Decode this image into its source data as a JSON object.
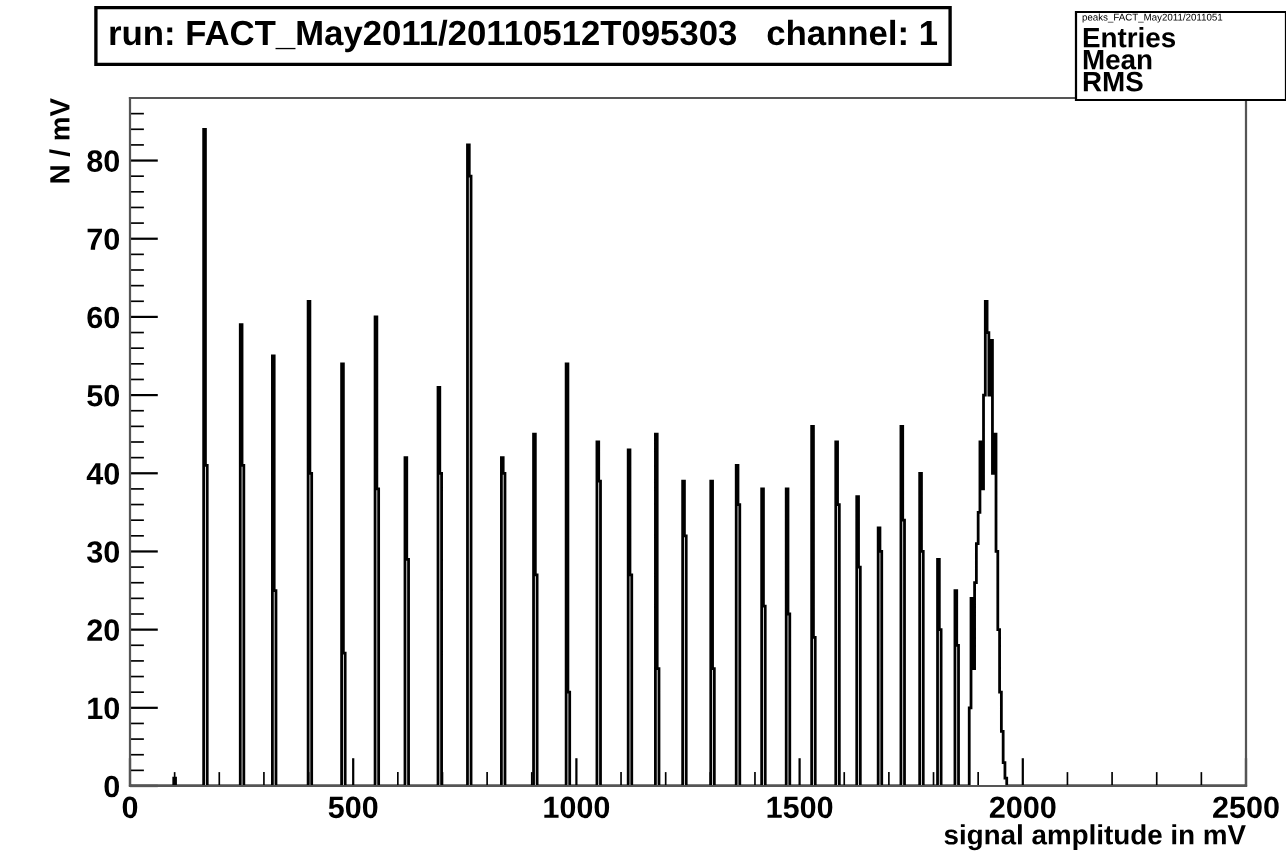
{
  "chart_data": {
    "type": "histogram",
    "title": "run: FACT_May2011/20110512T095303   channel: 1",
    "xlabel": "signal amplitude in mV",
    "ylabel": "N / mV",
    "bins": [
      0,
      98,
      102,
      165,
      169,
      173,
      247,
      251,
      255,
      319,
      323,
      327,
      399,
      403,
      407,
      474,
      478,
      482,
      549,
      553,
      557,
      616,
      620,
      624,
      690,
      694,
      698,
      756,
      760,
      764,
      832,
      836,
      840,
      904,
      908,
      912,
      977,
      981,
      985,
      1046,
      1050,
      1054,
      1116,
      1120,
      1124,
      1177,
      1181,
      1185,
      1238,
      1242,
      1246,
      1301,
      1305,
      1309,
      1358,
      1362,
      1366,
      1415,
      1419,
      1423,
      1470,
      1474,
      1478,
      1527,
      1531,
      1535,
      1581,
      1585,
      1589,
      1628,
      1632,
      1636,
      1676,
      1680,
      1684,
      1727,
      1731,
      1735,
      1769,
      1773,
      1777,
      1809,
      1813,
      1817,
      1848,
      1852,
      1856,
      1880,
      1884,
      1888,
      1892,
      1896,
      1900,
      1904,
      1908,
      1912,
      1916,
      1920,
      1924,
      1928,
      1932,
      1936,
      1940,
      1944,
      1948,
      1952,
      1956,
      1960,
      1964,
      2500
    ],
    "values": [
      0,
      1,
      0,
      84,
      41,
      0,
      59,
      41,
      0,
      55,
      25,
      0,
      62,
      40,
      0,
      54,
      17,
      0,
      60,
      38,
      0,
      42,
      29,
      0,
      51,
      40,
      0,
      82,
      78,
      0,
      42,
      40,
      0,
      45,
      27,
      0,
      54,
      12,
      0,
      44,
      39,
      0,
      43,
      27,
      0,
      45,
      15,
      0,
      39,
      32,
      0,
      39,
      15,
      0,
      41,
      36,
      0,
      38,
      23,
      0,
      38,
      22,
      0,
      46,
      19,
      0,
      44,
      36,
      0,
      37,
      28,
      0,
      33,
      30,
      0,
      46,
      34,
      0,
      40,
      30,
      0,
      29,
      20,
      0,
      25,
      18,
      0,
      10,
      24,
      15,
      26,
      31,
      35,
      44,
      38,
      50,
      62,
      58,
      50,
      57,
      40,
      45,
      30,
      20,
      12,
      7,
      3,
      1,
      0
    ],
    "color": "#000000",
    "xlim": [
      0,
      2500
    ],
    "xticks": [
      0,
      500,
      1000,
      1500,
      2000,
      2500
    ],
    "ylim": [
      0,
      88
    ],
    "yticks": [
      0,
      10,
      20,
      30,
      40,
      50,
      60,
      70,
      80
    ],
    "grid": false,
    "annotations": [
      "peaks_FACT_May2011/2011051",
      "Entries",
      "Mean",
      "RMS"
    ]
  }
}
